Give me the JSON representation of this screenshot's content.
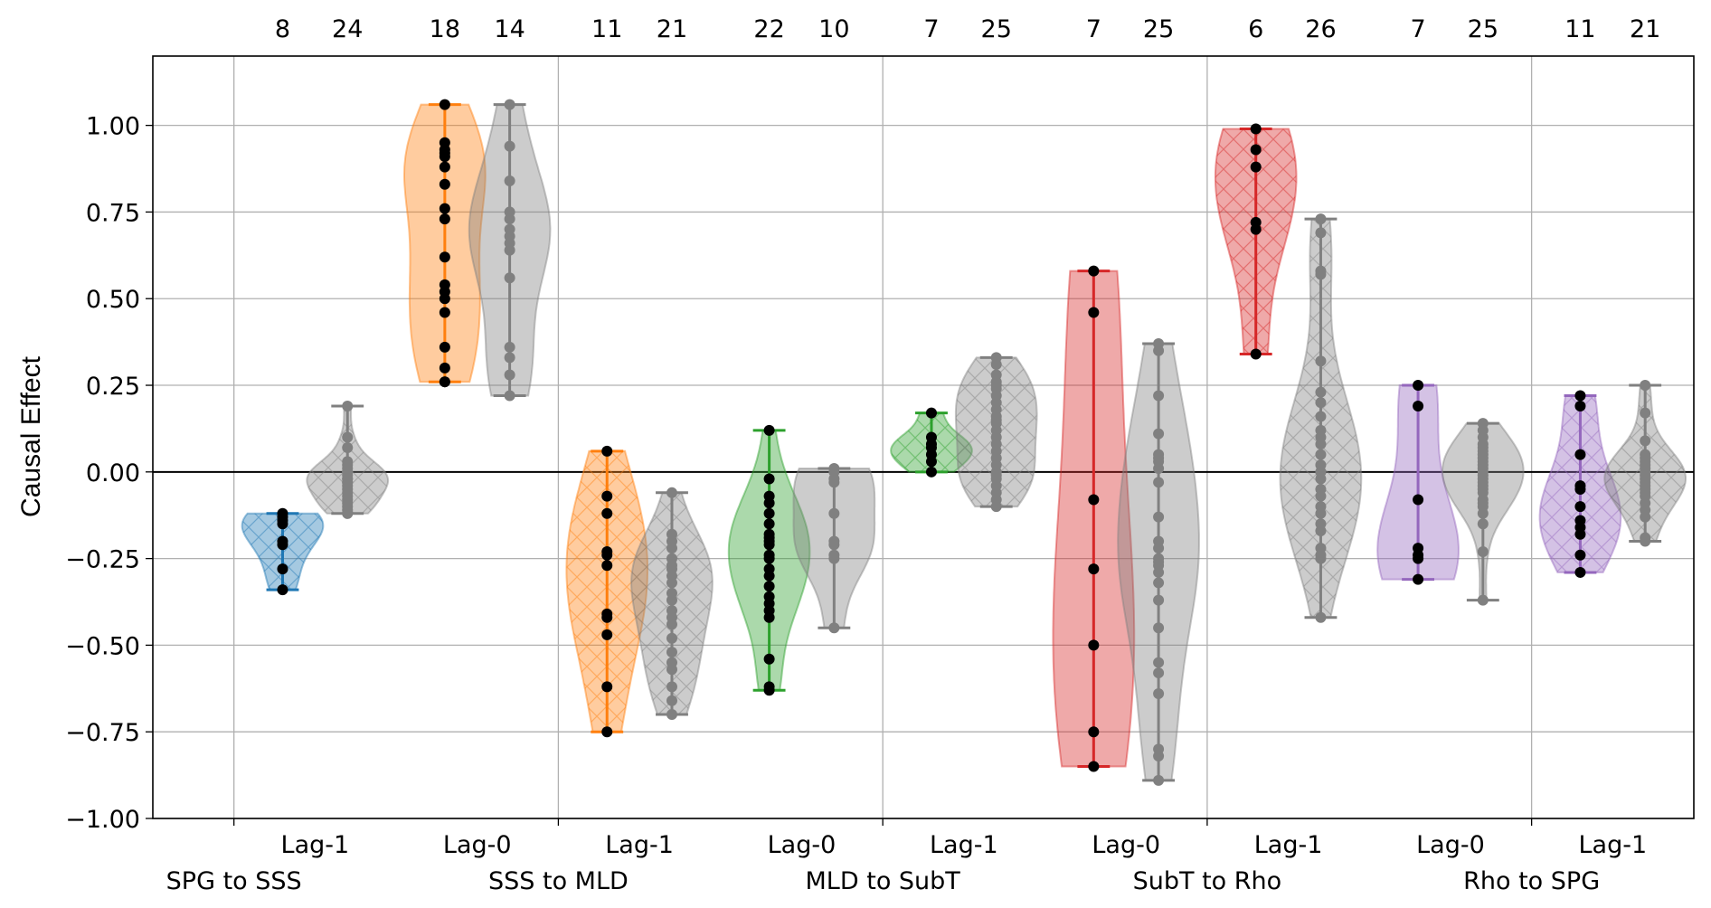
{
  "chart_data": {
    "type": "violin",
    "title": "",
    "xlabel": "",
    "ylabel": "Causal Effect",
    "ylim": [
      -1.0,
      1.2
    ],
    "xlim": [
      0.5,
      10.0
    ],
    "yticks": [
      "1.00",
      "0.75",
      "0.50",
      "0.25",
      "0.00",
      "−0.25",
      "−0.50",
      "−0.75",
      "−1.00"
    ],
    "ytick_values": [
      1.0,
      0.75,
      0.5,
      0.25,
      0.0,
      -0.25,
      -0.5,
      -0.75,
      -1.0
    ],
    "grid": true,
    "zero_line": true,
    "group_labels": [
      "SPG to SSS",
      "SSS to MLD",
      "MLD to SubT",
      "SubT to Rho",
      "Rho to SPG"
    ],
    "reference_color": "#808080",
    "pairs": [
      {
        "lag": "Lag-1",
        "color": "#1f77b4",
        "hatched": true,
        "main": {
          "n": 8,
          "values": [
            -0.12,
            -0.13,
            -0.14,
            -0.15,
            -0.2,
            -0.21,
            -0.28,
            -0.34
          ]
        },
        "reference": {
          "n": 24,
          "values": [
            0.19,
            0.1,
            0.07,
            0.03,
            0.02,
            0.01,
            0.0,
            0.0,
            -0.01,
            -0.02,
            -0.02,
            -0.03,
            -0.04,
            -0.05,
            -0.06,
            -0.07,
            -0.08,
            -0.09,
            -0.1,
            -0.11,
            -0.12,
            -0.12,
            0.0,
            -0.03
          ]
        }
      },
      {
        "lag": "Lag-0",
        "color": "#ff7f0e",
        "hatched": false,
        "main": {
          "n": 18,
          "values": [
            1.06,
            0.95,
            0.93,
            0.92,
            0.91,
            0.88,
            0.83,
            0.76,
            0.73,
            0.62,
            0.54,
            0.52,
            0.5,
            0.46,
            0.36,
            0.3,
            0.26,
            0.26
          ]
        },
        "reference": {
          "n": 14,
          "values": [
            1.06,
            0.94,
            0.84,
            0.75,
            0.73,
            0.7,
            0.68,
            0.66,
            0.64,
            0.56,
            0.36,
            0.33,
            0.28,
            0.22
          ]
        }
      },
      {
        "lag": "Lag-1",
        "color": "#ff7f0e",
        "hatched": true,
        "main": {
          "n": 11,
          "values": [
            0.06,
            -0.07,
            -0.12,
            -0.23,
            -0.24,
            -0.27,
            -0.41,
            -0.42,
            -0.47,
            -0.62,
            -0.75
          ]
        },
        "reference": {
          "n": 21,
          "values": [
            -0.06,
            -0.18,
            -0.2,
            -0.22,
            -0.25,
            -0.27,
            -0.28,
            -0.3,
            -0.32,
            -0.35,
            -0.37,
            -0.4,
            -0.42,
            -0.44,
            -0.48,
            -0.52,
            -0.55,
            -0.57,
            -0.62,
            -0.66,
            -0.7
          ]
        }
      },
      {
        "lag": "Lag-0",
        "color": "#2ca02c",
        "hatched": false,
        "main": {
          "n": 22,
          "values": [
            0.12,
            -0.02,
            -0.07,
            -0.09,
            -0.12,
            -0.15,
            -0.18,
            -0.19,
            -0.2,
            -0.21,
            -0.24,
            -0.25,
            -0.28,
            -0.3,
            -0.33,
            -0.36,
            -0.38,
            -0.4,
            -0.42,
            -0.54,
            -0.62,
            -0.63
          ]
        },
        "reference": {
          "n": 10,
          "values": [
            0.01,
            0.0,
            -0.02,
            -0.03,
            -0.12,
            -0.2,
            -0.21,
            -0.24,
            -0.25,
            -0.45
          ]
        }
      },
      {
        "lag": "Lag-1",
        "color": "#2ca02c",
        "hatched": true,
        "main": {
          "n": 7,
          "values": [
            0.17,
            0.1,
            0.08,
            0.07,
            0.05,
            0.03,
            0.0
          ]
        },
        "reference": {
          "n": 25,
          "values": [
            0.33,
            0.31,
            0.28,
            0.26,
            0.25,
            0.24,
            0.22,
            0.2,
            0.18,
            0.16,
            0.15,
            0.14,
            0.12,
            0.1,
            0.08,
            0.06,
            0.04,
            0.02,
            0.0,
            -0.01,
            -0.02,
            -0.04,
            -0.06,
            -0.08,
            -0.1
          ]
        }
      },
      {
        "lag": "Lag-0",
        "color": "#d62728",
        "hatched": false,
        "main": {
          "n": 7,
          "values": [
            0.58,
            0.46,
            -0.08,
            -0.28,
            -0.5,
            -0.75,
            -0.85
          ]
        },
        "reference": {
          "n": 25,
          "values": [
            0.37,
            0.35,
            0.22,
            0.11,
            0.05,
            0.04,
            0.03,
            0.01,
            -0.03,
            -0.13,
            -0.2,
            -0.22,
            -0.25,
            -0.26,
            -0.27,
            -0.29,
            -0.32,
            -0.37,
            -0.45,
            -0.55,
            -0.58,
            -0.64,
            -0.8,
            -0.82,
            -0.89
          ]
        }
      },
      {
        "lag": "Lag-1",
        "color": "#d62728",
        "hatched": true,
        "main": {
          "n": 6,
          "values": [
            0.99,
            0.93,
            0.88,
            0.72,
            0.7,
            0.34
          ]
        },
        "reference": {
          "n": 26,
          "values": [
            0.73,
            0.69,
            0.58,
            0.57,
            0.32,
            0.23,
            0.2,
            0.16,
            0.12,
            0.1,
            0.08,
            0.05,
            0.02,
            0.0,
            0.0,
            -0.02,
            -0.05,
            -0.07,
            -0.1,
            -0.12,
            -0.15,
            -0.17,
            -0.22,
            -0.24,
            -0.25,
            -0.42
          ]
        }
      },
      {
        "lag": "Lag-0",
        "color": "#9467bd",
        "hatched": false,
        "main": {
          "n": 7,
          "values": [
            0.25,
            0.19,
            -0.08,
            -0.22,
            -0.24,
            -0.25,
            -0.31
          ]
        },
        "reference": {
          "n": 25,
          "values": [
            0.14,
            0.12,
            0.1,
            0.08,
            0.07,
            0.06,
            0.05,
            0.04,
            0.03,
            0.02,
            0.01,
            0.0,
            -0.01,
            -0.02,
            -0.03,
            -0.04,
            -0.05,
            -0.06,
            -0.08,
            -0.09,
            -0.1,
            -0.12,
            -0.15,
            -0.23,
            -0.37
          ]
        }
      },
      {
        "lag": "Lag-1",
        "color": "#9467bd",
        "hatched": true,
        "main": {
          "n": 11,
          "values": [
            0.22,
            0.19,
            0.05,
            -0.04,
            -0.05,
            -0.1,
            -0.14,
            -0.16,
            -0.18,
            -0.24,
            -0.29
          ]
        },
        "reference": {
          "n": 21,
          "values": [
            0.25,
            0.17,
            0.09,
            0.05,
            0.04,
            0.03,
            0.02,
            0.01,
            0.0,
            -0.01,
            -0.02,
            -0.03,
            -0.04,
            -0.05,
            -0.06,
            -0.07,
            -0.09,
            -0.11,
            -0.13,
            -0.19,
            -0.2
          ]
        }
      }
    ]
  }
}
